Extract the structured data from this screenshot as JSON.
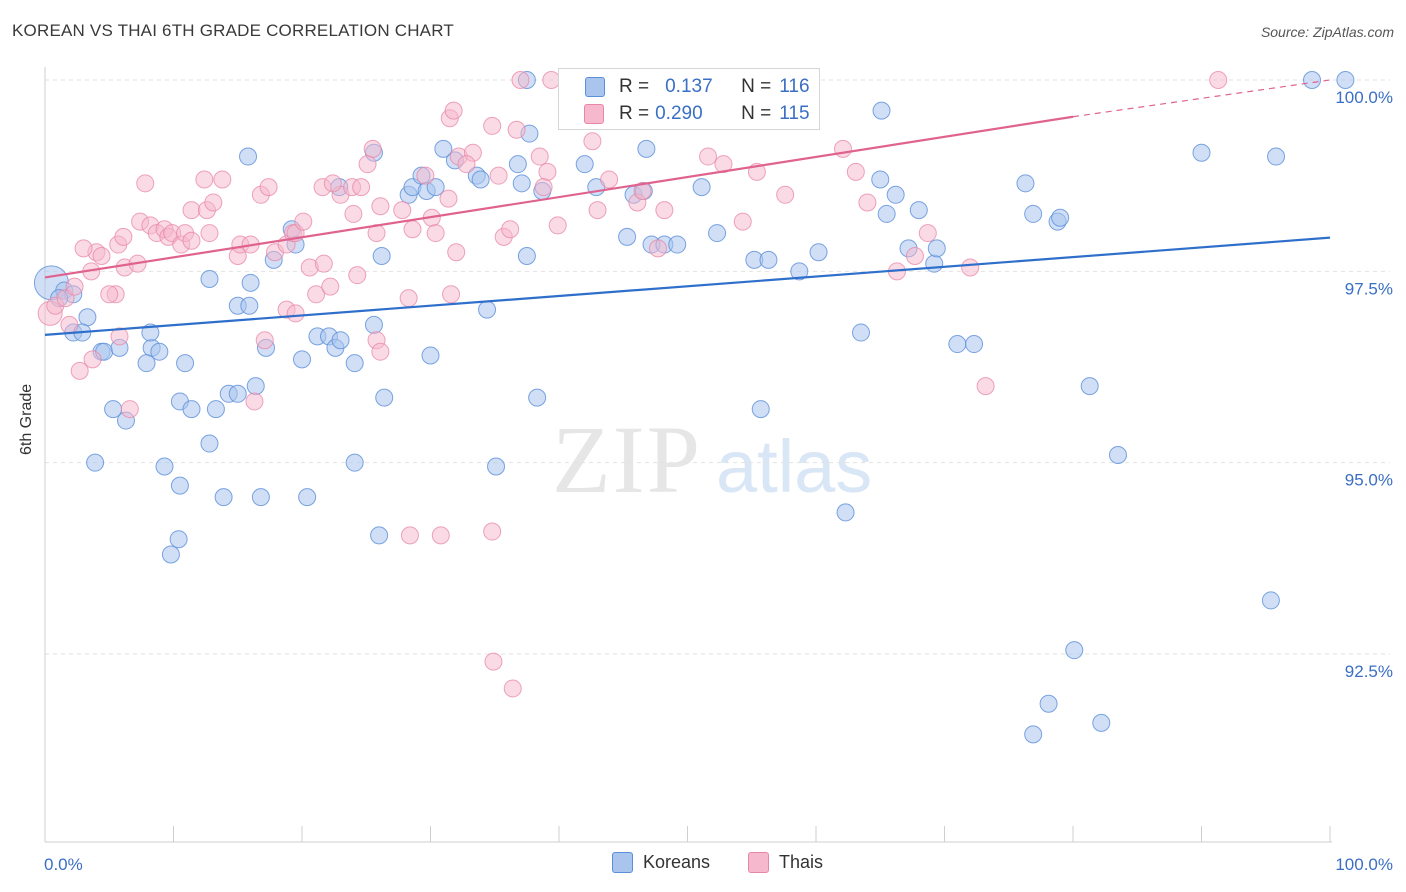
{
  "title": "KOREAN VS THAI 6TH GRADE CORRELATION CHART",
  "source": "Source: ZipAtlas.com",
  "watermark": {
    "zip": "ZIP",
    "atlas": "atlas"
  },
  "legend_top": {
    "rows": [
      {
        "r_label": "R =",
        "r_value": "0.137",
        "n_label": "N =",
        "n_value": "116"
      },
      {
        "r_label": "R =",
        "r_value": "0.290",
        "n_label": "N =",
        "n_value": "115"
      }
    ]
  },
  "legend_bottom": [
    "Koreans",
    "Thais"
  ],
  "colors": {
    "korean_fill": "#a9c5ee",
    "korean_stroke": "#5b8fd9",
    "korean_line": "#2f6fcc",
    "thai_fill": "#f6b8cc",
    "thai_stroke": "#e886a6",
    "thai_line": "#e0628f",
    "axis_text": "#3a6fc4"
  },
  "chart_data": {
    "type": "scatter",
    "title": "KOREAN VS THAI 6TH GRADE CORRELATION CHART",
    "xlabel": "",
    "ylabel": "6th Grade",
    "x_unit": "%",
    "xlim": [
      0,
      100
    ],
    "ylim": [
      90.5,
      100.4
    ],
    "x_tick_labels": [
      "0.0%",
      "100.0%"
    ],
    "y_ticks": [
      92.5,
      95.0,
      97.5,
      100.0
    ],
    "y_tick_labels": [
      "92.5%",
      "95.0%",
      "97.5%",
      "100.0%"
    ],
    "grid": true,
    "series": [
      {
        "name": "Koreans",
        "r": 0.137,
        "n": 116,
        "trend": {
          "x": [
            0,
            100
          ],
          "y": [
            96.67,
            97.94
          ]
        },
        "points": [
          [
            0.5,
            97.35
          ],
          [
            1.5,
            97.25
          ],
          [
            2.2,
            97.2
          ],
          [
            1.1,
            97.15
          ],
          [
            3.3,
            96.9
          ],
          [
            2.2,
            96.7
          ],
          [
            2.9,
            96.7
          ],
          [
            4.4,
            96.45
          ],
          [
            4.6,
            96.45
          ],
          [
            5.8,
            96.5
          ],
          [
            8.3,
            96.5
          ],
          [
            8.2,
            96.7
          ],
          [
            8.9,
            96.45
          ],
          [
            7.9,
            96.3
          ],
          [
            10.9,
            96.3
          ],
          [
            12.8,
            97.4
          ],
          [
            10.5,
            95.8
          ],
          [
            11.4,
            95.7
          ],
          [
            13.3,
            95.7
          ],
          [
            14.3,
            95.9
          ],
          [
            15.0,
            95.9
          ],
          [
            16.4,
            96.0
          ],
          [
            5.3,
            95.7
          ],
          [
            6.3,
            95.55
          ],
          [
            3.9,
            95.0
          ],
          [
            9.3,
            94.95
          ],
          [
            10.5,
            94.7
          ],
          [
            12.8,
            95.25
          ],
          [
            13.9,
            94.55
          ],
          [
            16.8,
            94.55
          ],
          [
            20.4,
            94.55
          ],
          [
            10.4,
            94.0
          ],
          [
            9.8,
            93.8
          ],
          [
            15.8,
            99.0
          ],
          [
            15.0,
            97.05
          ],
          [
            15.9,
            97.05
          ],
          [
            16.0,
            97.35
          ],
          [
            17.2,
            96.5
          ],
          [
            17.8,
            97.65
          ],
          [
            19.5,
            97.85
          ],
          [
            19.2,
            98.05
          ],
          [
            21.2,
            96.65
          ],
          [
            22.1,
            96.65
          ],
          [
            22.6,
            96.5
          ],
          [
            23.0,
            96.6
          ],
          [
            24.1,
            96.3
          ],
          [
            25.6,
            96.8
          ],
          [
            24.1,
            95.0
          ],
          [
            26.0,
            94.05
          ],
          [
            22.9,
            98.6
          ],
          [
            25.6,
            99.05
          ],
          [
            26.2,
            97.7
          ],
          [
            28.3,
            98.5
          ],
          [
            28.6,
            98.6
          ],
          [
            29.3,
            98.75
          ],
          [
            29.7,
            98.55
          ],
          [
            30.4,
            98.6
          ],
          [
            33.6,
            98.75
          ],
          [
            33.9,
            98.7
          ],
          [
            34.4,
            97.0
          ],
          [
            36.8,
            98.9
          ],
          [
            37.1,
            98.65
          ],
          [
            31.9,
            98.95
          ],
          [
            31.0,
            99.1
          ],
          [
            38.7,
            98.55
          ],
          [
            37.5,
            97.7
          ],
          [
            37.5,
            100.0
          ],
          [
            42.2,
            100.0
          ],
          [
            37.7,
            99.3
          ],
          [
            42.0,
            98.9
          ],
          [
            42.9,
            98.6
          ],
          [
            45.3,
            97.95
          ],
          [
            46.8,
            99.1
          ],
          [
            47.2,
            97.85
          ],
          [
            45.8,
            98.5
          ],
          [
            46.6,
            98.55
          ],
          [
            48.2,
            97.85
          ],
          [
            49.2,
            97.85
          ],
          [
            51.1,
            98.6
          ],
          [
            52.3,
            98.0
          ],
          [
            50.1,
            100.0
          ],
          [
            53.8,
            100.0
          ],
          [
            55.2,
            97.65
          ],
          [
            56.3,
            97.65
          ],
          [
            58.7,
            97.5
          ],
          [
            60.2,
            97.75
          ],
          [
            63.5,
            96.7
          ],
          [
            65.0,
            98.7
          ],
          [
            66.2,
            98.5
          ],
          [
            65.5,
            98.25
          ],
          [
            67.2,
            97.8
          ],
          [
            68.0,
            98.3
          ],
          [
            69.2,
            97.6
          ],
          [
            69.4,
            97.8
          ],
          [
            71.0,
            96.55
          ],
          [
            72.3,
            96.55
          ],
          [
            65.1,
            99.6
          ],
          [
            76.3,
            98.65
          ],
          [
            76.9,
            98.25
          ],
          [
            78.8,
            98.15
          ],
          [
            79.0,
            98.2
          ],
          [
            81.3,
            96.0
          ],
          [
            83.5,
            95.1
          ],
          [
            90.0,
            99.05
          ],
          [
            95.8,
            99.0
          ],
          [
            98.6,
            100.0
          ],
          [
            101.2,
            100.0
          ],
          [
            95.4,
            93.2
          ],
          [
            80.1,
            92.55
          ],
          [
            78.1,
            91.85
          ],
          [
            76.9,
            91.45
          ],
          [
            82.2,
            91.6
          ],
          [
            30.0,
            96.4
          ],
          [
            26.4,
            95.85
          ],
          [
            20.0,
            96.35
          ],
          [
            38.3,
            95.85
          ],
          [
            62.3,
            94.35
          ],
          [
            55.7,
            95.7
          ],
          [
            35.1,
            94.95
          ]
        ]
      },
      {
        "name": "Thais",
        "r": 0.29,
        "n": 115,
        "trend": {
          "x": [
            0,
            80
          ],
          "y": [
            97.42,
            99.52
          ]
        },
        "trend_dashed": {
          "x": [
            80,
            100
          ],
          "y": [
            99.52,
            100.0
          ]
        },
        "points": [
          [
            0.4,
            96.95
          ],
          [
            0.8,
            97.05
          ],
          [
            1.6,
            97.15
          ],
          [
            2.3,
            97.3
          ],
          [
            3.6,
            97.5
          ],
          [
            4.0,
            97.75
          ],
          [
            4.4,
            97.7
          ],
          [
            3.0,
            97.8
          ],
          [
            1.9,
            96.8
          ],
          [
            2.7,
            96.2
          ],
          [
            5.5,
            97.2
          ],
          [
            6.2,
            97.55
          ],
          [
            7.2,
            97.6
          ],
          [
            5.7,
            97.85
          ],
          [
            6.1,
            97.95
          ],
          [
            7.4,
            98.15
          ],
          [
            8.2,
            98.1
          ],
          [
            8.7,
            98.0
          ],
          [
            9.3,
            98.05
          ],
          [
            9.6,
            97.95
          ],
          [
            9.9,
            98.0
          ],
          [
            10.6,
            97.85
          ],
          [
            10.9,
            98.0
          ],
          [
            11.4,
            97.9
          ],
          [
            11.4,
            98.3
          ],
          [
            12.6,
            98.3
          ],
          [
            12.8,
            98.0
          ],
          [
            13.1,
            98.4
          ],
          [
            13.8,
            98.7
          ],
          [
            12.4,
            98.7
          ],
          [
            7.8,
            98.65
          ],
          [
            15.0,
            97.7
          ],
          [
            15.2,
            97.85
          ],
          [
            16.0,
            97.85
          ],
          [
            16.8,
            98.5
          ],
          [
            17.4,
            98.6
          ],
          [
            17.9,
            97.75
          ],
          [
            18.8,
            97.85
          ],
          [
            19.3,
            98.0
          ],
          [
            19.5,
            98.0
          ],
          [
            20.1,
            98.15
          ],
          [
            20.6,
            97.55
          ],
          [
            21.7,
            97.6
          ],
          [
            21.6,
            98.6
          ],
          [
            23.0,
            98.5
          ],
          [
            22.4,
            98.65
          ],
          [
            23.9,
            98.6
          ],
          [
            24.6,
            98.6
          ],
          [
            25.1,
            98.9
          ],
          [
            25.5,
            99.1
          ],
          [
            24.0,
            98.25
          ],
          [
            25.8,
            98.0
          ],
          [
            26.1,
            98.35
          ],
          [
            27.8,
            98.3
          ],
          [
            28.6,
            98.05
          ],
          [
            30.1,
            98.2
          ],
          [
            30.4,
            98.0
          ],
          [
            29.6,
            98.75
          ],
          [
            31.4,
            98.45
          ],
          [
            32.0,
            97.75
          ],
          [
            31.6,
            97.2
          ],
          [
            32.2,
            99.0
          ],
          [
            33.3,
            99.05
          ],
          [
            32.8,
            98.9
          ],
          [
            31.5,
            99.5
          ],
          [
            31.8,
            99.6
          ],
          [
            34.8,
            99.4
          ],
          [
            35.7,
            97.95
          ],
          [
            36.2,
            98.05
          ],
          [
            36.7,
            99.35
          ],
          [
            37.0,
            100.0
          ],
          [
            35.3,
            98.75
          ],
          [
            38.5,
            99.0
          ],
          [
            39.1,
            98.8
          ],
          [
            38.8,
            98.6
          ],
          [
            39.9,
            98.1
          ],
          [
            39.4,
            100.0
          ],
          [
            41.2,
            99.75
          ],
          [
            42.6,
            99.2
          ],
          [
            43.0,
            98.3
          ],
          [
            43.9,
            98.7
          ],
          [
            46.1,
            98.4
          ],
          [
            46.5,
            98.55
          ],
          [
            48.2,
            98.3
          ],
          [
            47.7,
            97.8
          ],
          [
            50.7,
            100.0
          ],
          [
            51.6,
            99.0
          ],
          [
            52.8,
            98.9
          ],
          [
            54.3,
            98.15
          ],
          [
            55.4,
            98.8
          ],
          [
            57.6,
            98.5
          ],
          [
            62.1,
            99.1
          ],
          [
            63.1,
            98.8
          ],
          [
            64.0,
            98.4
          ],
          [
            66.3,
            97.5
          ],
          [
            67.7,
            97.7
          ],
          [
            68.7,
            98.0
          ],
          [
            72.0,
            97.55
          ],
          [
            73.2,
            96.0
          ],
          [
            91.3,
            100.0
          ],
          [
            3.7,
            96.35
          ],
          [
            5.8,
            96.65
          ],
          [
            5.0,
            97.2
          ],
          [
            16.3,
            95.8
          ],
          [
            17.1,
            96.6
          ],
          [
            18.8,
            97.0
          ],
          [
            19.5,
            96.95
          ],
          [
            21.1,
            97.2
          ],
          [
            22.2,
            97.3
          ],
          [
            24.3,
            97.45
          ],
          [
            25.8,
            96.6
          ],
          [
            26.1,
            96.45
          ],
          [
            28.3,
            97.15
          ],
          [
            30.8,
            94.05
          ],
          [
            28.4,
            94.05
          ],
          [
            34.8,
            94.1
          ],
          [
            34.9,
            92.4
          ],
          [
            36.4,
            92.05
          ],
          [
            6.6,
            95.7
          ]
        ]
      }
    ]
  }
}
